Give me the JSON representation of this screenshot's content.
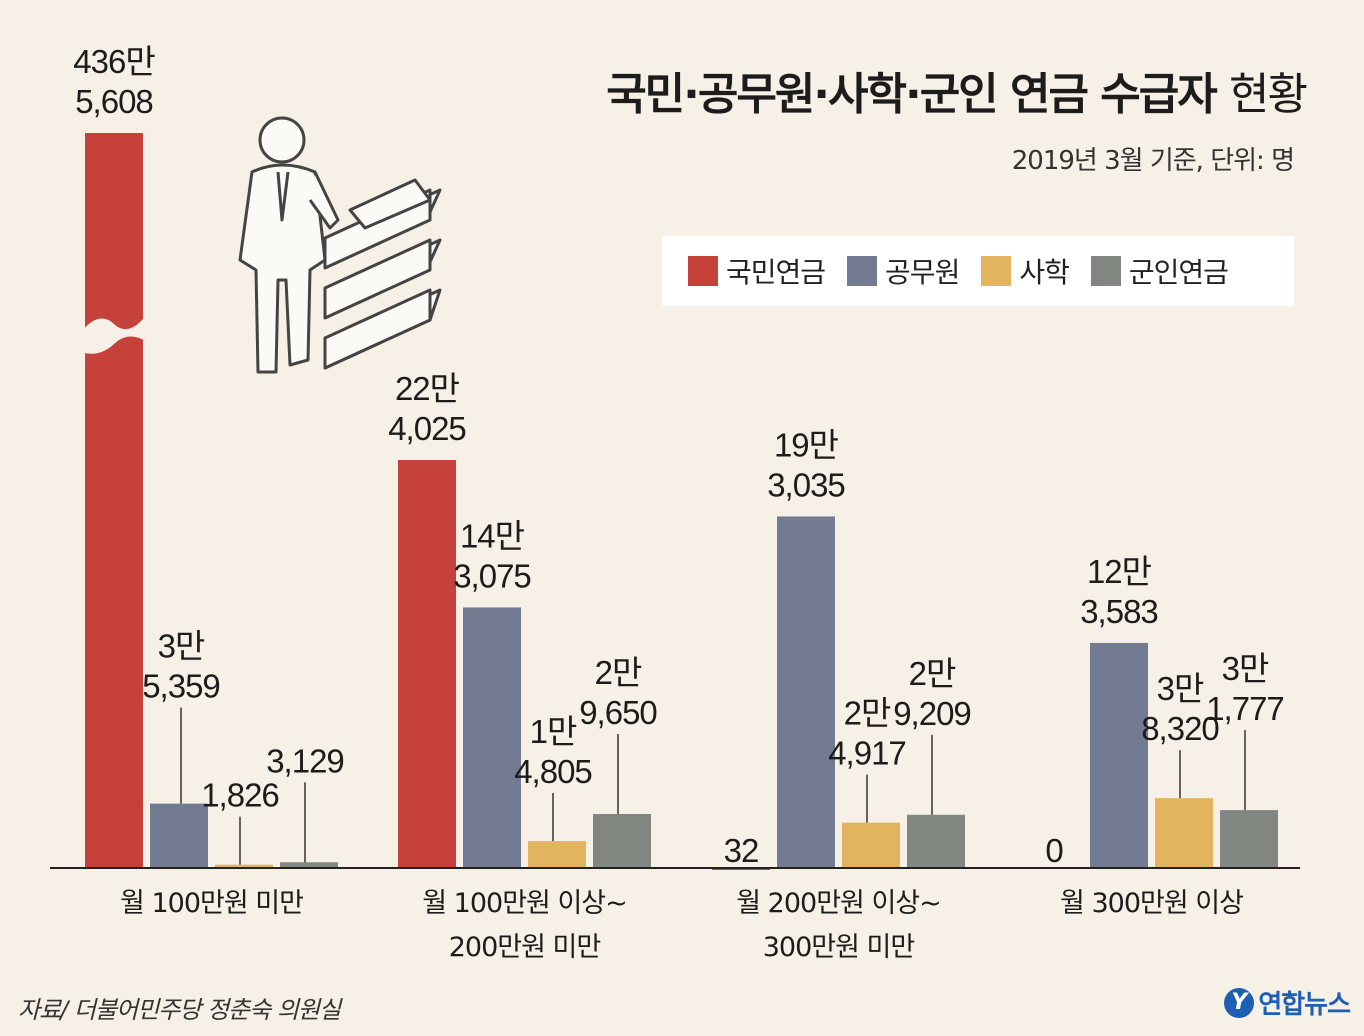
{
  "header": {
    "title_bold": "국민·공무원·사학·군인 연금 수급자",
    "title_light": "현황",
    "subtitle": "2019년 3월 기준, 단위: 명"
  },
  "legend": [
    {
      "label": "국민연금",
      "color": "#c64139"
    },
    {
      "label": "공무원",
      "color": "#737b92"
    },
    {
      "label": "사학",
      "color": "#e3b460"
    },
    {
      "label": "군인연금",
      "color": "#818680"
    }
  ],
  "chart_data": {
    "type": "bar",
    "categories": [
      [
        "월 100만원 미만"
      ],
      [
        "월 100만원 이상~",
        "200만원 미만"
      ],
      [
        "월 200만원 이상~",
        "300만원 미만"
      ],
      [
        "월 300만원 이상"
      ]
    ],
    "series": [
      {
        "name": "국민연금",
        "color": "#c64139",
        "values": [
          4365608,
          224025,
          32,
          0
        ],
        "labels": [
          [
            "436만",
            "5,608"
          ],
          [
            "22만",
            "4,025"
          ],
          [
            "32"
          ],
          [
            "0"
          ]
        ]
      },
      {
        "name": "공무원",
        "color": "#737b92",
        "values": [
          35359,
          143075,
          193035,
          123583
        ],
        "labels": [
          [
            "3만",
            "5,359"
          ],
          [
            "14만",
            "3,075"
          ],
          [
            "19만",
            "3,035"
          ],
          [
            "12만",
            "3,583"
          ]
        ]
      },
      {
        "name": "사학",
        "color": "#e3b460",
        "values": [
          1826,
          14805,
          24917,
          38320
        ],
        "labels": [
          [
            "1,826"
          ],
          [
            "1만",
            "4,805"
          ],
          [
            "2만",
            "4,917"
          ],
          [
            "3만",
            "8,320"
          ]
        ]
      },
      {
        "name": "군인연금",
        "color": "#818680",
        "values": [
          3129,
          29650,
          29209,
          31777
        ],
        "labels": [
          [
            "3,129"
          ],
          [
            "2만",
            "9,650"
          ],
          [
            "2만",
            "9,209"
          ],
          [
            "3만",
            "1,777"
          ]
        ]
      }
    ],
    "axis_break": true,
    "grid": false,
    "legend_position": "top-right"
  },
  "footer": {
    "source": "자료/ 더불어민주당 정춘숙 의원실",
    "logo_text": "연합뉴스"
  }
}
